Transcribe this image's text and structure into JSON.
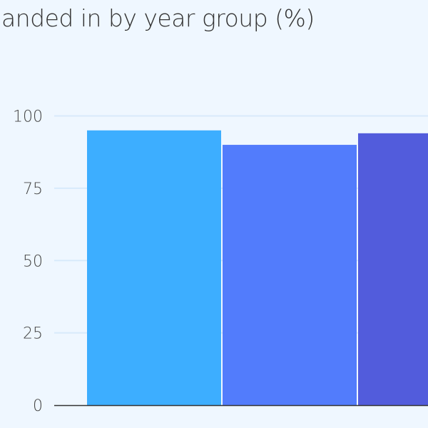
{
  "chart_data": {
    "type": "bar",
    "title": "anded in by year group (%)",
    "xlabel": "",
    "ylabel": "",
    "ylim": [
      0,
      100
    ],
    "yticks": [
      0,
      25,
      50,
      75,
      100
    ],
    "grid": true,
    "values": [
      95,
      90,
      94
    ],
    "colors": [
      "#3daeff",
      "#527cfc",
      "#525cdc"
    ],
    "gridColor": "#d8eafb",
    "axisColor": "#333333"
  }
}
